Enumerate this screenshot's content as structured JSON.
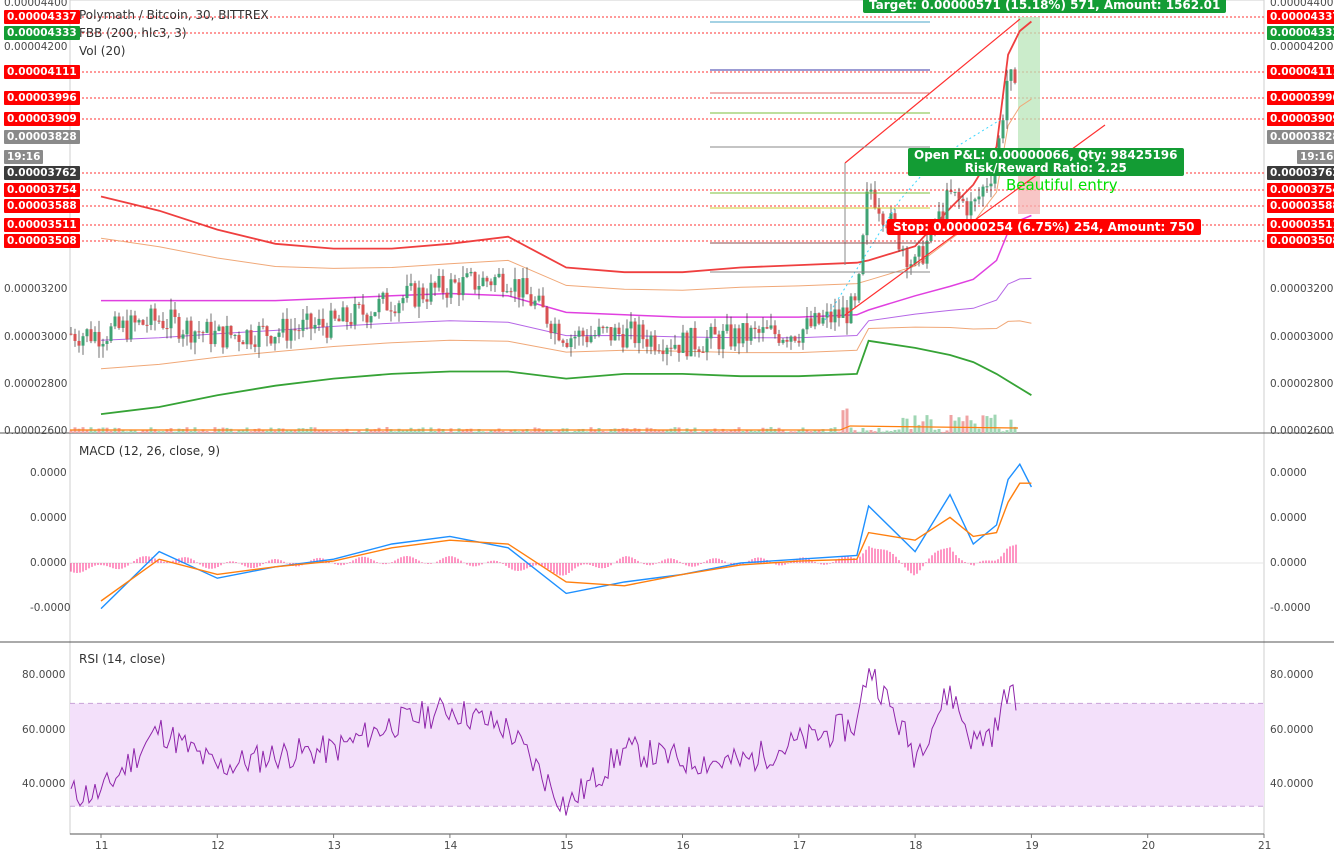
{
  "header": {
    "title": "Polymath / Bitcoin, 30, BITTREX",
    "ind1": "FBB (200, hlc3, 3)",
    "ind2": "Vol (20)",
    "macd": "MACD (12, 26, close, 9)",
    "rsi": "RSI (14, close)"
  },
  "colors": {
    "tag_red": "#ff0000",
    "tag_green": "#139c34",
    "tag_dark": "#3b3b3b",
    "tag_gray": "#8a8a8a",
    "upper_band": "#ef3f3f",
    "lower_band": "#36a336",
    "mid_band": "#e040e0",
    "candle_up": "#3fa374",
    "candle_down": "#d85252",
    "macd": "#1e90ff",
    "signal": "#ff7f0e",
    "hist": "#ff2d8a",
    "rsi": "#8e24aa",
    "rsi_fill": "#f3e0fa",
    "annotation": "#00ff00"
  },
  "price_tags": [
    {
      "value": "0.00004337",
      "type": "red"
    },
    {
      "value": "0.00004333",
      "type": "green"
    },
    {
      "value": "0.00004111",
      "type": "red"
    },
    {
      "value": "0.00003996",
      "type": "red"
    },
    {
      "value": "0.00003909",
      "type": "red"
    },
    {
      "value": "0.00003828",
      "type": "gray"
    },
    {
      "value": "19:16",
      "type": "gray"
    },
    {
      "value": "0.00003762",
      "type": "dark"
    },
    {
      "value": "0.00003754",
      "type": "red"
    },
    {
      "value": "0.00003588",
      "type": "red"
    },
    {
      "value": "0.00003511",
      "type": "red"
    },
    {
      "value": "0.00003508",
      "type": "red"
    }
  ],
  "price_axis": [
    "0.00004400",
    "0.00004200",
    "0.00003200",
    "0.00003000",
    "0.00002800",
    "0.00002600"
  ],
  "macd_axis": [
    "0.0000",
    "0.0000",
    "0.0000",
    "-0.0000"
  ],
  "rsi_axis": [
    "80.0000",
    "60.0000",
    "40.0000"
  ],
  "time_axis": [
    "11",
    "12",
    "13",
    "14",
    "15",
    "16",
    "17",
    "18",
    "19",
    "20",
    "21"
  ],
  "position": {
    "target": "Target: 0.00000571 (15.18%) 571, Amount: 1562.01",
    "pnl": "Open P&L: 0.00000066, Qty: 98425196",
    "rr": "Risk/Reward Ratio: 2.25",
    "stop": "Stop: 0.00000254 (6.75%) 254, Amount: 750",
    "note": "Beautiful entry"
  },
  "chart_data": [
    {
      "type": "candlestick",
      "title": "Polymath / Bitcoin, 30, BITTREX",
      "ylim": [
        2.6e-05,
        4.4e-05
      ],
      "x": [
        "11",
        "11.5",
        "12",
        "12.5",
        "13",
        "13.5",
        "14",
        "14.5",
        "15",
        "15.5",
        "16",
        "16.5",
        "17",
        "17.5",
        "17.6",
        "18",
        "18.3",
        "18.5",
        "18.7",
        "18.8",
        "18.9",
        "19"
      ],
      "close": [
        3.02e-05,
        3.08e-05,
        3.01e-05,
        3.03e-05,
        3.06e-05,
        3.16e-05,
        3.22e-05,
        3.26e-05,
        3.01e-05,
        3.02e-05,
        2.98e-05,
        3.01e-05,
        3.03e-05,
        3.13e-05,
        3.65e-05,
        3.3e-05,
        3.6e-05,
        3.55e-05,
        3.75e-05,
        4.13e-05,
        3.95e-05,
        3.76e-05
      ],
      "series": [
        {
          "name": "FBB upper",
          "values": [
            3.6e-05,
            3.54e-05,
            3.46e-05,
            3.4e-05,
            3.38e-05,
            3.38e-05,
            3.4e-05,
            3.43e-05,
            3.3e-05,
            3.28e-05,
            3.28e-05,
            3.3e-05,
            3.31e-05,
            3.32e-05,
            3.33e-05,
            3.39e-05,
            3.55e-05,
            3.65e-05,
            3.81e-05,
            4.2e-05,
            4.3e-05,
            4.34e-05
          ]
        },
        {
          "name": "FBB basis",
          "values": [
            3.16e-05,
            3.16e-05,
            3.16e-05,
            3.16e-05,
            3.17e-05,
            3.18e-05,
            3.19e-05,
            3.18e-05,
            3.11e-05,
            3.1e-05,
            3.09e-05,
            3.09e-05,
            3.09e-05,
            3.1e-05,
            3.12e-05,
            3.18e-05,
            3.22e-05,
            3.25e-05,
            3.33e-05,
            3.45e-05,
            3.5e-05,
            3.52e-05
          ]
        },
        {
          "name": "FBB lower",
          "values": [
            2.68e-05,
            2.71e-05,
            2.76e-05,
            2.8e-05,
            2.83e-05,
            2.85e-05,
            2.86e-05,
            2.86e-05,
            2.83e-05,
            2.85e-05,
            2.85e-05,
            2.84e-05,
            2.84e-05,
            2.85e-05,
            2.99e-05,
            2.96e-05,
            2.93e-05,
            2.9e-05,
            2.85e-05,
            2.82e-05,
            2.79e-05,
            2.76e-05
          ]
        }
      ]
    },
    {
      "type": "line",
      "title": "MACD (12, 26, close, 9)",
      "x": [
        "11",
        "11.5",
        "12",
        "12.5",
        "13",
        "13.5",
        "14",
        "14.5",
        "15",
        "15.5",
        "16",
        "16.5",
        "17",
        "17.5",
        "17.6",
        "18",
        "18.3",
        "18.5",
        "18.7",
        "18.8",
        "18.9",
        "19"
      ],
      "series": [
        {
          "name": "MACD",
          "values": [
            -1.2,
            0.3,
            -0.4,
            -0.1,
            0.1,
            0.5,
            0.7,
            0.4,
            -0.8,
            -0.5,
            -0.3,
            0.0,
            0.1,
            0.2,
            1.5,
            0.3,
            1.8,
            0.5,
            1.0,
            2.2,
            2.6,
            2.0
          ]
        },
        {
          "name": "Signal",
          "values": [
            -1.0,
            0.1,
            -0.3,
            -0.1,
            0.05,
            0.4,
            0.6,
            0.5,
            -0.5,
            -0.6,
            -0.3,
            -0.05,
            0.05,
            0.1,
            0.8,
            0.6,
            1.2,
            0.7,
            0.8,
            1.6,
            2.1,
            2.1
          ]
        }
      ]
    },
    {
      "type": "line",
      "title": "RSI (14, close)",
      "ylim": [
        20,
        90
      ],
      "x": [
        "11",
        "11.5",
        "12",
        "12.5",
        "13",
        "13.5",
        "14",
        "14.5",
        "15",
        "15.5",
        "16",
        "16.5",
        "17",
        "17.5",
        "17.6",
        "18",
        "18.3",
        "18.5",
        "18.7",
        "18.8",
        "18.9",
        "19"
      ],
      "series": [
        {
          "name": "RSI",
          "values": [
            35,
            60,
            45,
            50,
            52,
            62,
            68,
            60,
            30,
            52,
            48,
            47,
            55,
            62,
            85,
            50,
            75,
            55,
            60,
            77,
            65,
            56
          ]
        }
      ]
    }
  ]
}
